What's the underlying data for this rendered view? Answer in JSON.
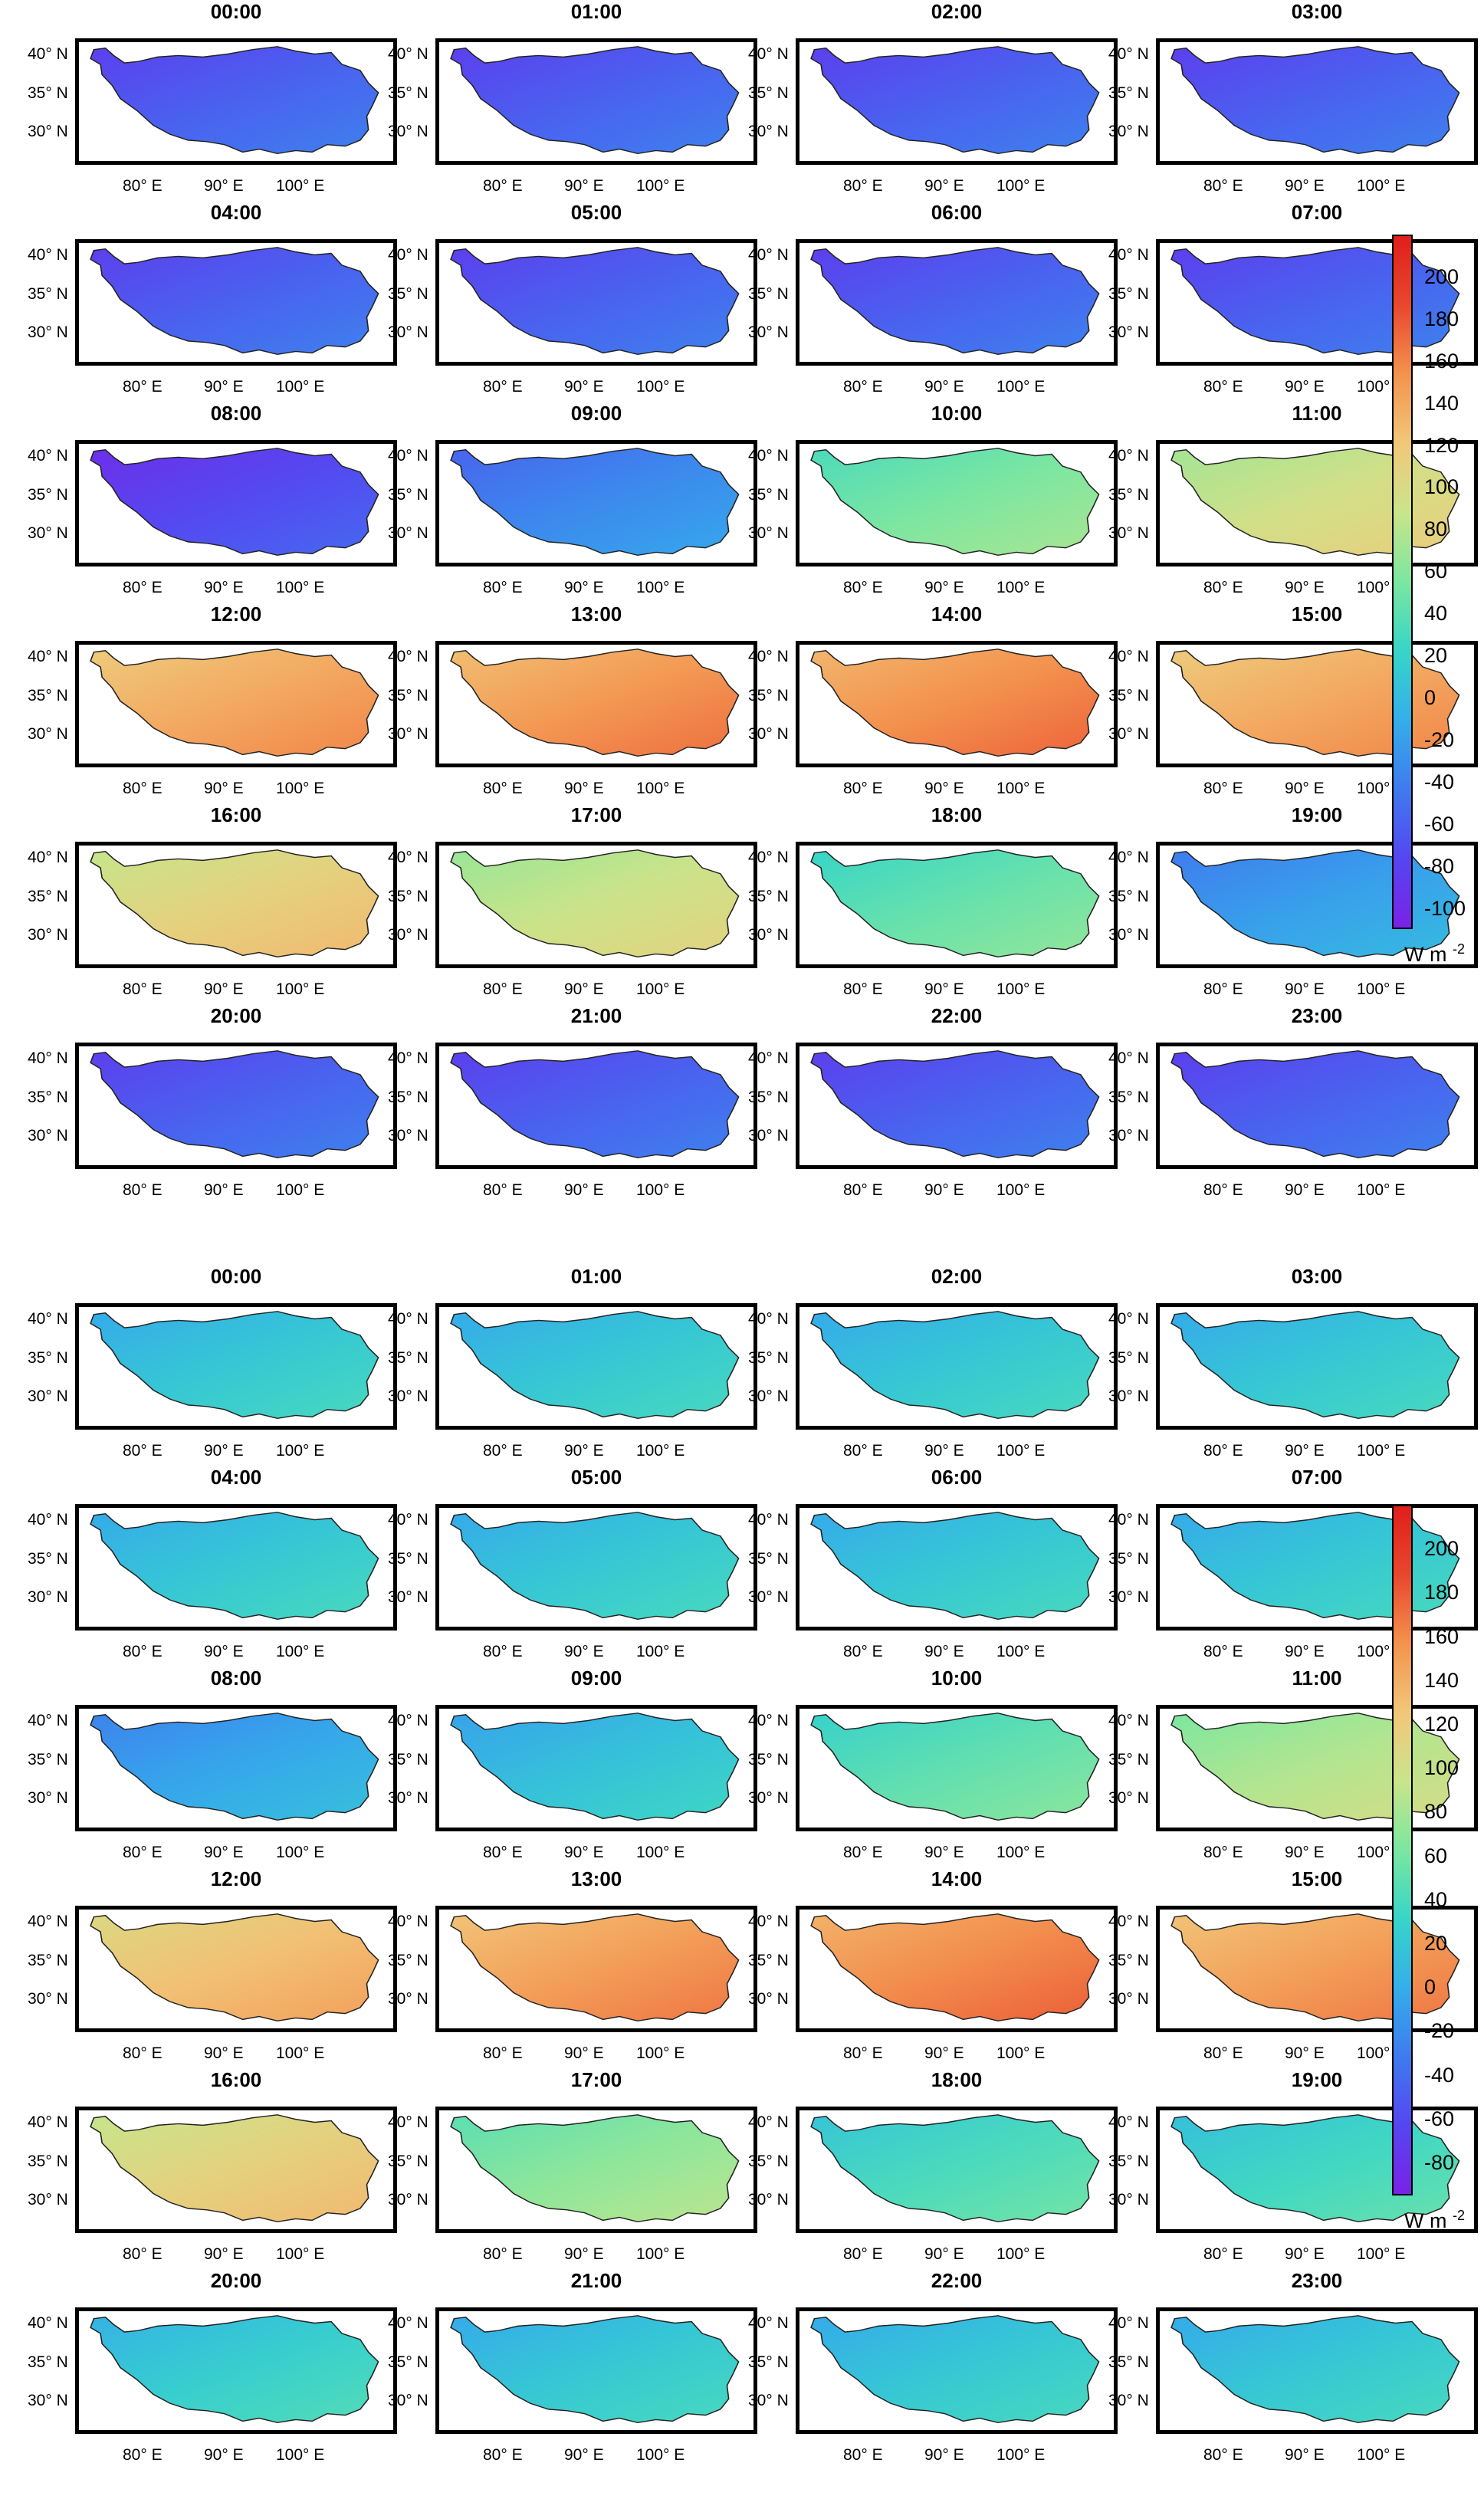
{
  "figure_a": {
    "panels": [
      "00:00",
      "01:00",
      "02:00",
      "03:00",
      "04:00",
      "05:00",
      "06:00",
      "07:00",
      "08:00",
      "09:00",
      "10:00",
      "11:00",
      "12:00",
      "13:00",
      "14:00",
      "15:00",
      "16:00",
      "17:00",
      "18:00",
      "19:00",
      "20:00",
      "21:00",
      "22:00",
      "23:00"
    ],
    "colorbar_ticks": [
      "200",
      "180",
      "160",
      "140",
      "120",
      "100",
      "80",
      "60",
      "40",
      "20",
      "0",
      "-20",
      "-40",
      "-60",
      "-80",
      "-100"
    ],
    "colorbar_unit": "W m",
    "colorbar_unit_exp": "-2"
  },
  "figure_b": {
    "panels": [
      "00:00",
      "01:00",
      "02:00",
      "03:00",
      "04:00",
      "05:00",
      "06:00",
      "07:00",
      "08:00",
      "09:00",
      "10:00",
      "11:00",
      "12:00",
      "13:00",
      "14:00",
      "15:00",
      "16:00",
      "17:00",
      "18:00",
      "19:00",
      "20:00",
      "21:00",
      "22:00",
      "23:00"
    ],
    "colorbar_ticks": [
      "200",
      "180",
      "160",
      "140",
      "120",
      "100",
      "80",
      "60",
      "40",
      "20",
      "0",
      "-20",
      "-40",
      "-60",
      "-80"
    ],
    "colorbar_unit": "W m",
    "colorbar_unit_exp": "-2"
  },
  "axes": {
    "y_ticks": [
      "40° N",
      "35° N",
      "30° N"
    ],
    "x_ticks": [
      "80° E",
      "90° E",
      "100° E"
    ]
  },
  "colormap": [
    "#7a22e6",
    "#5546f0",
    "#3f7bee",
    "#35aeea",
    "#37d5c8",
    "#7ce6a0",
    "#c9e58a",
    "#f2c77a",
    "#f3934f",
    "#e9472e",
    "#df1f1b"
  ],
  "chart_data": [
    {
      "type": "heatmap",
      "title": "",
      "variable_unit": "W m-2",
      "colorbar_range": [
        -110,
        220
      ],
      "panel_labels": [
        "00:00",
        "01:00",
        "02:00",
        "03:00",
        "04:00",
        "05:00",
        "06:00",
        "07:00",
        "08:00",
        "09:00",
        "10:00",
        "11:00",
        "12:00",
        "13:00",
        "14:00",
        "15:00",
        "16:00",
        "17:00",
        "18:00",
        "19:00",
        "20:00",
        "21:00",
        "22:00",
        "23:00"
      ],
      "approx_mean_value_per_panel": [
        -60,
        -60,
        -60,
        -60,
        -60,
        -60,
        -60,
        -60,
        -75,
        -35,
        55,
        95,
        140,
        150,
        155,
        140,
        110,
        90,
        45,
        -20,
        -60,
        -60,
        -60,
        -60
      ],
      "x_ticks": [
        "80° E",
        "90° E",
        "100° E"
      ],
      "y_ticks": [
        "40° N",
        "35° N",
        "30° N"
      ]
    },
    {
      "type": "heatmap",
      "title": "",
      "variable_unit": "W m-2",
      "colorbar_range": [
        -95,
        220
      ],
      "panel_labels": [
        "00:00",
        "01:00",
        "02:00",
        "03:00",
        "04:00",
        "05:00",
        "06:00",
        "07:00",
        "08:00",
        "09:00",
        "10:00",
        "11:00",
        "12:00",
        "13:00",
        "14:00",
        "15:00",
        "16:00",
        "17:00",
        "18:00",
        "19:00",
        "20:00",
        "21:00",
        "22:00",
        "23:00"
      ],
      "approx_mean_value_per_panel": [
        20,
        20,
        20,
        20,
        20,
        20,
        20,
        20,
        -5,
        15,
        50,
        85,
        130,
        150,
        160,
        150,
        115,
        70,
        40,
        35,
        25,
        20,
        20,
        20
      ],
      "x_ticks": [
        "80° E",
        "90° E",
        "100° E"
      ],
      "y_ticks": [
        "40° N",
        "35° N",
        "30° N"
      ]
    }
  ]
}
